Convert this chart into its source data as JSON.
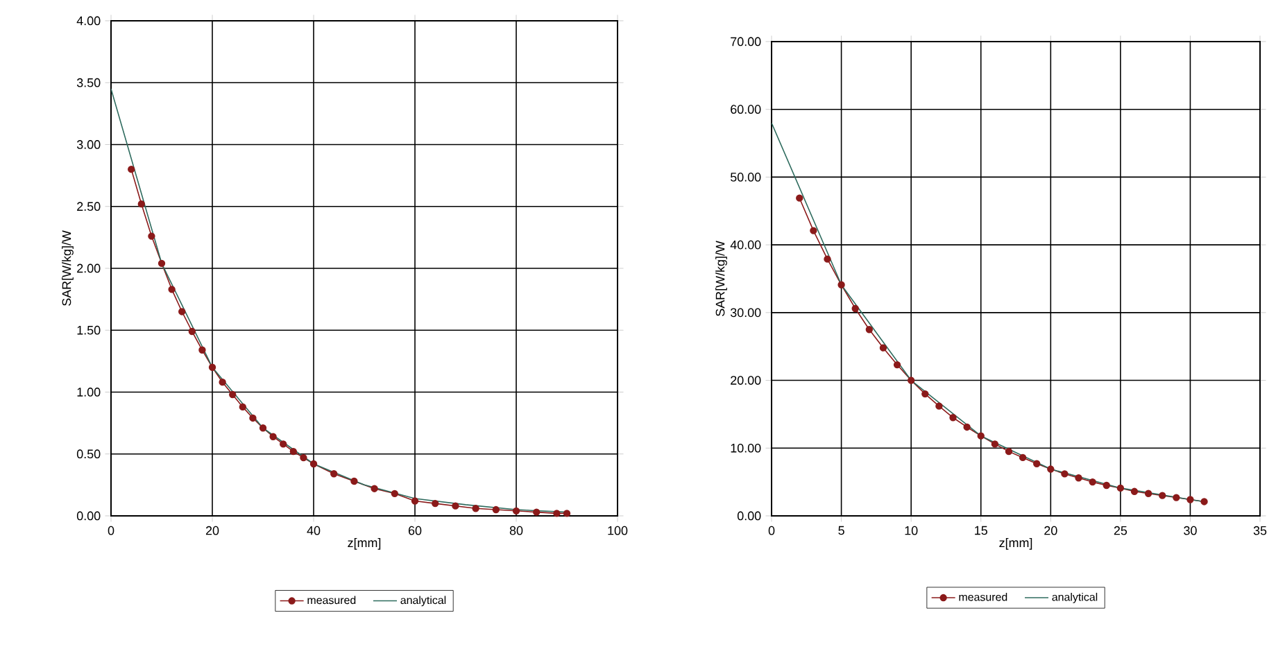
{
  "chart_data": [
    {
      "type": "line",
      "xlabel": "z[mm]",
      "ylabel": "SAR[W/kg]/W",
      "xlim": [
        0,
        100
      ],
      "xticks": [
        0,
        20,
        40,
        60,
        80,
        100
      ],
      "ylim": [
        0,
        4
      ],
      "yticks": [
        {
          "value": 0,
          "label": "0.00"
        },
        {
          "value": 0.5,
          "label": "0.50"
        },
        {
          "value": 1,
          "label": "1.00"
        },
        {
          "value": 1.5,
          "label": "1.50"
        },
        {
          "value": 2,
          "label": "2.00"
        },
        {
          "value": 2.5,
          "label": "2.50"
        },
        {
          "value": 3,
          "label": "3.00"
        },
        {
          "value": 3.5,
          "label": "3.50"
        },
        {
          "value": 4,
          "label": "4.00"
        }
      ],
      "grid": true,
      "legend": "bottom",
      "series": [
        {
          "name": "measured",
          "color": "#8b1a1a",
          "marker": "circle",
          "x": [
            4,
            6,
            8,
            10,
            12,
            14,
            16,
            18,
            20,
            22,
            24,
            26,
            28,
            30,
            32,
            34,
            36,
            38,
            40,
            44,
            48,
            52,
            56,
            60,
            64,
            68,
            72,
            76,
            80,
            84,
            88,
            90
          ],
          "values": [
            2.8,
            2.52,
            2.26,
            2.04,
            1.83,
            1.65,
            1.49,
            1.34,
            1.2,
            1.08,
            0.98,
            0.88,
            0.79,
            0.71,
            0.64,
            0.58,
            0.52,
            0.47,
            0.42,
            0.34,
            0.28,
            0.22,
            0.18,
            0.12,
            0.1,
            0.08,
            0.06,
            0.05,
            0.04,
            0.03,
            0.02,
            0.02
          ]
        },
        {
          "name": "analytical",
          "color": "#2e6b5e",
          "marker": "none",
          "x": [
            0,
            10,
            20,
            30,
            40,
            50,
            60,
            70,
            80,
            90
          ],
          "values": [
            3.45,
            2.04,
            1.2,
            0.71,
            0.42,
            0.25,
            0.14,
            0.09,
            0.05,
            0.03
          ]
        }
      ]
    },
    {
      "type": "line",
      "xlabel": "z[mm]",
      "ylabel": "SAR[W/kg]/W",
      "xlim": [
        0,
        35
      ],
      "xticks": [
        0,
        5,
        10,
        15,
        20,
        25,
        30,
        35
      ],
      "ylim": [
        0,
        70
      ],
      "yticks": [
        {
          "value": 0,
          "label": "0.00"
        },
        {
          "value": 10,
          "label": "10.00"
        },
        {
          "value": 20,
          "label": "20.00"
        },
        {
          "value": 30,
          "label": "30.00"
        },
        {
          "value": 40,
          "label": "40.00"
        },
        {
          "value": 50,
          "label": "50.00"
        },
        {
          "value": 60,
          "label": "60.00"
        },
        {
          "value": 70,
          "label": "70.00"
        }
      ],
      "grid": true,
      "legend": "bottom",
      "series": [
        {
          "name": "measured",
          "color": "#8b1a1a",
          "marker": "circle",
          "x": [
            2,
            3,
            4,
            5,
            6,
            7,
            8,
            9,
            10,
            11,
            12,
            13,
            14,
            15,
            16,
            17,
            18,
            19,
            20,
            21,
            22,
            23,
            24,
            25,
            26,
            27,
            28,
            29,
            30,
            31
          ],
          "values": [
            46.9,
            42.1,
            37.9,
            34.1,
            30.6,
            27.5,
            24.8,
            22.3,
            20.0,
            18.0,
            16.2,
            14.5,
            13.1,
            11.8,
            10.6,
            9.5,
            8.6,
            7.7,
            6.9,
            6.2,
            5.6,
            5.0,
            4.5,
            4.1,
            3.6,
            3.3,
            3.0,
            2.7,
            2.4,
            2.1
          ]
        },
        {
          "name": "analytical",
          "color": "#2e6b5e",
          "marker": "none",
          "x": [
            0,
            5,
            10,
            15,
            20,
            25,
            30,
            31
          ],
          "values": [
            58,
            34.1,
            20.0,
            11.8,
            6.9,
            4.1,
            2.4,
            2.1
          ]
        }
      ]
    }
  ]
}
